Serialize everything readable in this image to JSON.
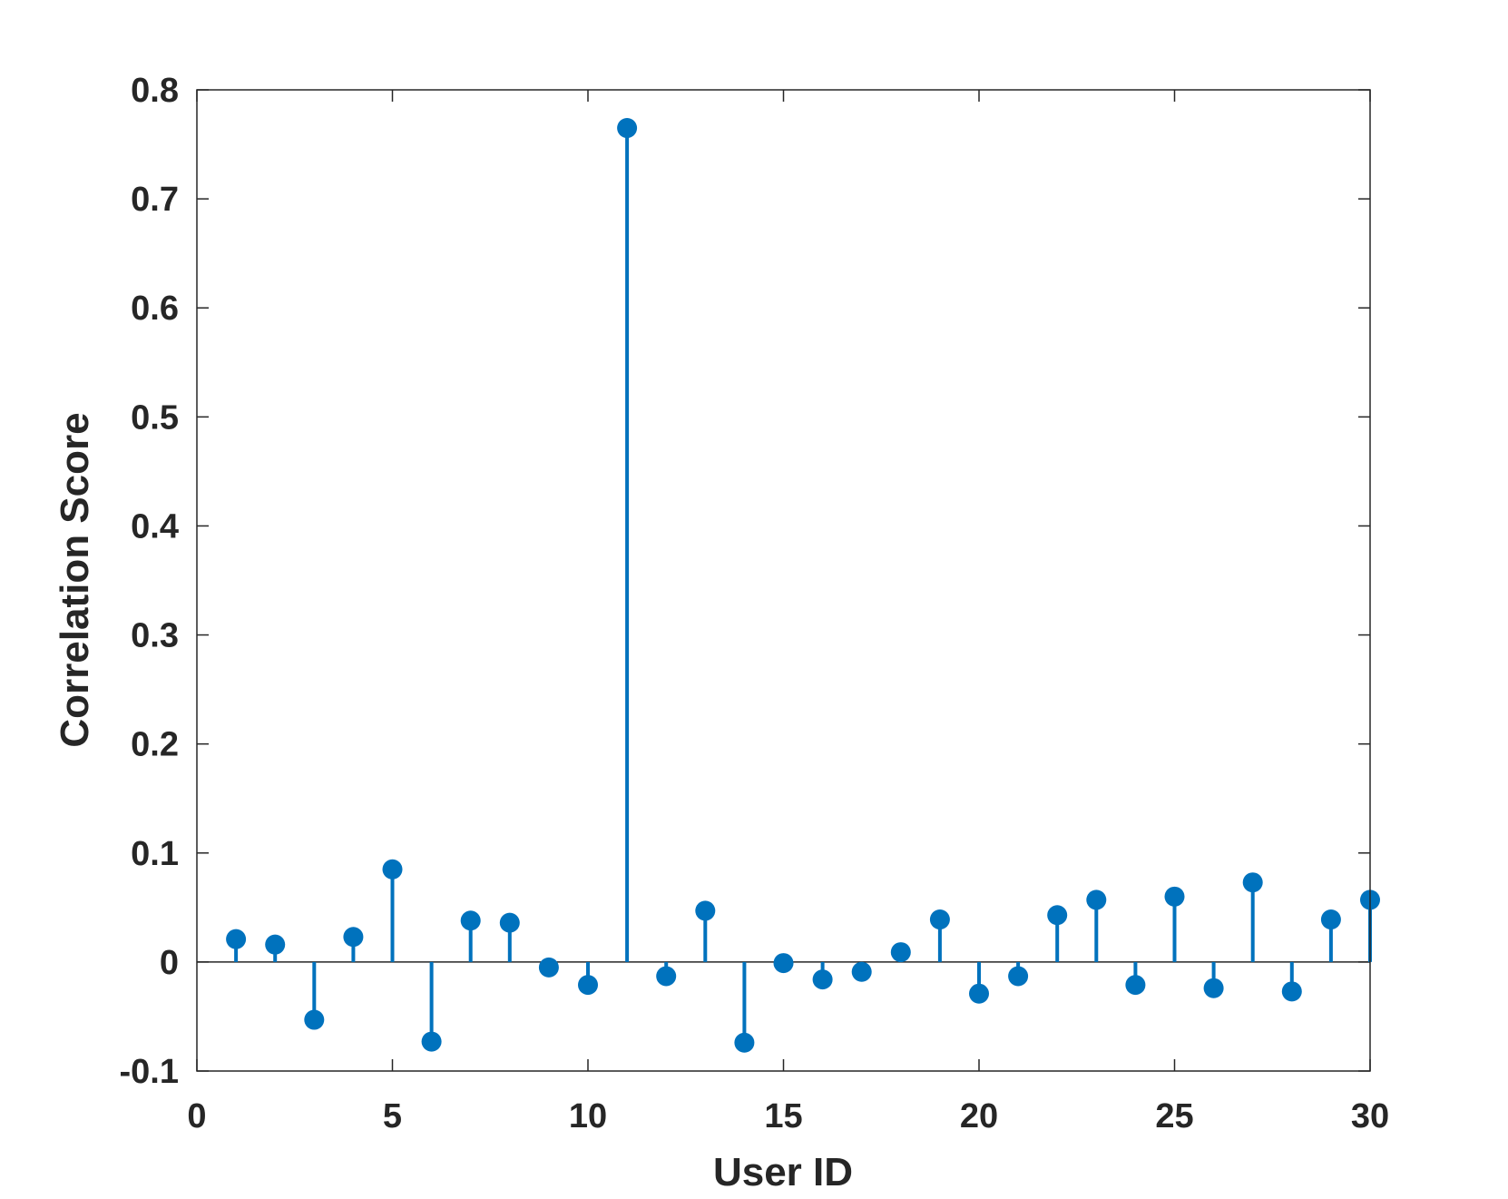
{
  "chart_data": {
    "type": "stem",
    "title": "",
    "xlabel": "User ID",
    "ylabel": "Correlation Score",
    "xlim": [
      0,
      30
    ],
    "ylim": [
      -0.1,
      0.8
    ],
    "xticks": [
      "0",
      "5",
      "10",
      "15",
      "20",
      "25",
      "30"
    ],
    "yticks": [
      "-0.1",
      "0",
      "0.1",
      "0.2",
      "0.3",
      "0.4",
      "0.5",
      "0.6",
      "0.7",
      "0.8"
    ],
    "grid": false,
    "baseline": 0,
    "color": "#0072BD",
    "x": [
      1,
      2,
      3,
      4,
      5,
      6,
      7,
      8,
      9,
      10,
      11,
      12,
      13,
      14,
      15,
      16,
      17,
      18,
      19,
      20,
      21,
      22,
      23,
      24,
      25,
      26,
      27,
      28,
      29,
      30
    ],
    "y": [
      0.021,
      0.016,
      -0.053,
      0.023,
      0.085,
      -0.073,
      0.038,
      0.036,
      -0.005,
      -0.021,
      0.765,
      -0.013,
      0.047,
      -0.074,
      -0.001,
      -0.016,
      -0.009,
      0.009,
      0.039,
      -0.029,
      -0.013,
      0.043,
      0.057,
      -0.021,
      0.06,
      -0.024,
      0.073,
      -0.027,
      0.039,
      0.057
    ]
  }
}
